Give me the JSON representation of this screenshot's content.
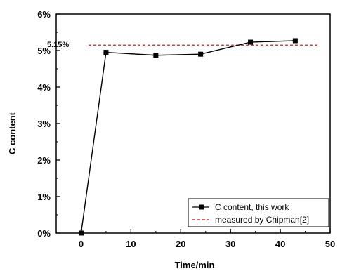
{
  "chart_data": {
    "type": "line",
    "xlabel": "Time/min",
    "ylabel": "C content",
    "xlim": [
      -5,
      50
    ],
    "ylim": [
      0,
      6
    ],
    "x_ticks": [
      0,
      10,
      20,
      30,
      40,
      50
    ],
    "x_tick_labels": [
      "0",
      "10",
      "20",
      "30",
      "40",
      "50"
    ],
    "y_ticks": [
      0,
      1,
      2,
      3,
      4,
      5,
      6
    ],
    "y_tick_labels": [
      "0%",
      "1%",
      "2%",
      "3%",
      "4%",
      "5%",
      "6%"
    ],
    "grid": false,
    "legend_position": "bottom-right",
    "series": [
      {
        "name": "C content, this work",
        "style": "line-square-markers",
        "color": "#000000",
        "x": [
          0,
          5,
          15,
          24,
          34,
          43
        ],
        "y": [
          0.0,
          4.95,
          4.87,
          4.9,
          5.23,
          5.27
        ]
      }
    ],
    "reference_lines": [
      {
        "name": "measured by Chipman[2]",
        "style": "dashed",
        "color": "#cc0000",
        "y": 5.15,
        "x_range": [
          -5,
          50
        ],
        "label": "5.15%"
      }
    ]
  }
}
